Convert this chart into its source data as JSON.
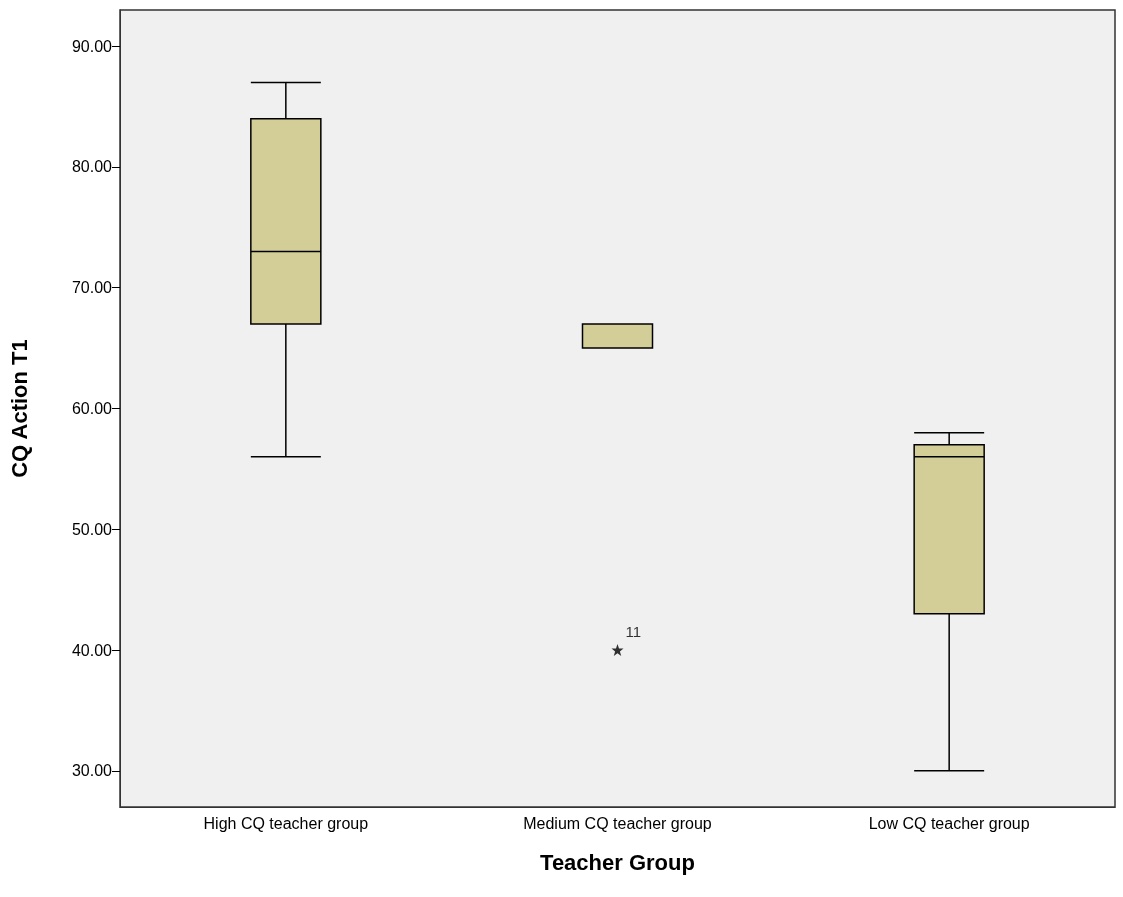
{
  "chart_data": {
    "type": "box",
    "xlabel": "Teacher Group",
    "ylabel": "CQ Action T1",
    "categories": [
      "High CQ teacher group",
      "Medium CQ teacher group",
      "Low CQ teacher group"
    ],
    "boxes": [
      {
        "low": 56,
        "q1": 67,
        "median": 73,
        "q3": 84,
        "high": 87
      },
      {
        "low": 65,
        "q1": 65,
        "median": 65,
        "q3": 67,
        "high": 67,
        "outliers": [
          40
        ]
      },
      {
        "low": 30,
        "q1": 43,
        "median": 56,
        "q3": 57,
        "high": 58
      }
    ],
    "color": "#d3ce97",
    "marker": "star",
    "grid": false,
    "ylim": [
      27,
      93
    ],
    "yticks": [
      {
        "value": 30,
        "label": "30.00"
      },
      {
        "value": 40,
        "label": "40.00"
      },
      {
        "value": 50,
        "label": "50.00"
      },
      {
        "value": 60,
        "label": "60.00"
      },
      {
        "value": 70,
        "label": "70.00"
      },
      {
        "value": 80,
        "label": "80.00"
      },
      {
        "value": 90,
        "label": "90.00"
      }
    ],
    "annotations": [
      "11"
    ]
  }
}
